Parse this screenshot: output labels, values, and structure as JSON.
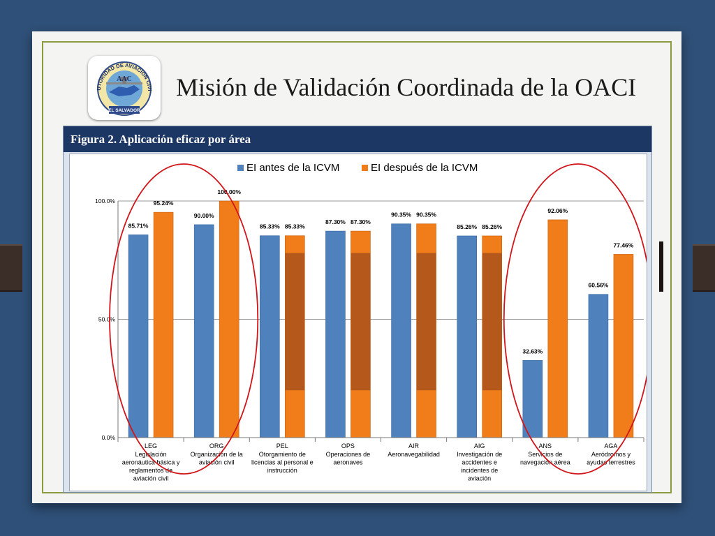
{
  "slide": {
    "title": "Misión de Validación Coordinada de la OACI",
    "logo_text_top": "AUTORIDAD DE AVIACION CIVIL",
    "logo_text_center": "AAC",
    "logo_text_bottom": "EL SALVADOR"
  },
  "figure": {
    "title": "Figura 2. Aplicación eficaz por área"
  },
  "colors": {
    "before": "#4f81bd",
    "after": "#f07c1a",
    "after_mid": "#b4581c",
    "highlight": "#d0161b"
  },
  "chart_data": {
    "type": "bar",
    "categories": [
      {
        "code": "LEG",
        "lines": [
          "Legislación",
          "aeronáutica básica y",
          "reglamentos de",
          "aviación civil"
        ]
      },
      {
        "code": "ORG",
        "lines": [
          "Organización de la",
          "aviación civil"
        ]
      },
      {
        "code": "PEL",
        "lines": [
          "Otorgamiento de",
          "licencias al personal e",
          "instrucción"
        ]
      },
      {
        "code": "OPS",
        "lines": [
          "Operaciones de",
          "aeronaves"
        ]
      },
      {
        "code": "AIR",
        "lines": [
          "Aeronavegabilidad"
        ]
      },
      {
        "code": "AIG",
        "lines": [
          "Investigación de",
          "accidentes e",
          "incidentes de",
          "aviación"
        ]
      },
      {
        "code": "ANS",
        "lines": [
          "Servicios de",
          "navegación aérea"
        ]
      },
      {
        "code": "AGA",
        "lines": [
          "Aeródromos y",
          "ayudas terrestres"
        ]
      }
    ],
    "series": [
      {
        "name": "EI antes de la ICVM",
        "values": [
          85.71,
          90.0,
          85.33,
          87.3,
          90.35,
          85.26,
          32.63,
          60.56
        ],
        "labels": [
          "85.71%",
          "90.00%",
          "85.33%",
          "87.30%",
          "90.35%",
          "85.26%",
          "32.63%",
          "60.56%"
        ]
      },
      {
        "name": "EI después de la ICVM",
        "values": [
          95.24,
          100.0,
          85.33,
          87.3,
          90.35,
          85.26,
          92.06,
          77.46
        ],
        "labels": [
          "95.24%",
          "100.00%",
          "85.33%",
          "87.30%",
          "90.35%",
          "85.26%",
          "92.06%",
          "77.46%"
        ]
      }
    ],
    "unchanged_band": [
      20,
      78
    ],
    "yticks": [
      {
        "value": 0,
        "label": "0.0%"
      },
      {
        "value": 50,
        "label": "50.0%"
      },
      {
        "value": 100,
        "label": "100.0%"
      }
    ],
    "ylim": [
      0,
      100
    ],
    "legend_position": "top-center",
    "highlighted_groups": [
      [
        "LEG",
        "ORG"
      ],
      [
        "ANS",
        "AGA"
      ]
    ]
  }
}
